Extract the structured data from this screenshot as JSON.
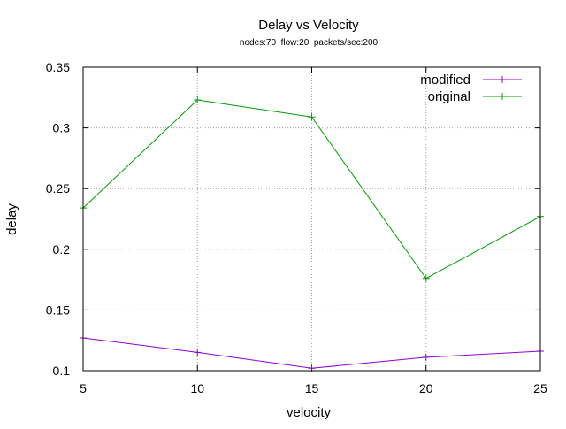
{
  "chart_data": {
    "type": "line",
    "title": "Delay vs Velocity",
    "subtitle": "nodes:70  flow:20  packets/sec:200",
    "xlabel": "velocity",
    "ylabel": "delay",
    "x": [
      5,
      10,
      15,
      20,
      25
    ],
    "xlim": [
      5,
      25
    ],
    "ylim": [
      0.1,
      0.35
    ],
    "xticks": [
      "5",
      "10",
      "15",
      "20",
      "25"
    ],
    "yticks": [
      "0.1",
      "0.15",
      "0.2",
      "0.25",
      "0.3",
      "0.35"
    ],
    "grid": true,
    "legend_position": "top-right",
    "series": [
      {
        "name": "modified",
        "color": "#9400d3",
        "values": [
          0.127,
          0.115,
          0.102,
          0.111,
          0.116
        ]
      },
      {
        "name": "original",
        "color": "#009e00",
        "values": [
          0.234,
          0.323,
          0.309,
          0.176,
          0.227
        ]
      }
    ]
  }
}
